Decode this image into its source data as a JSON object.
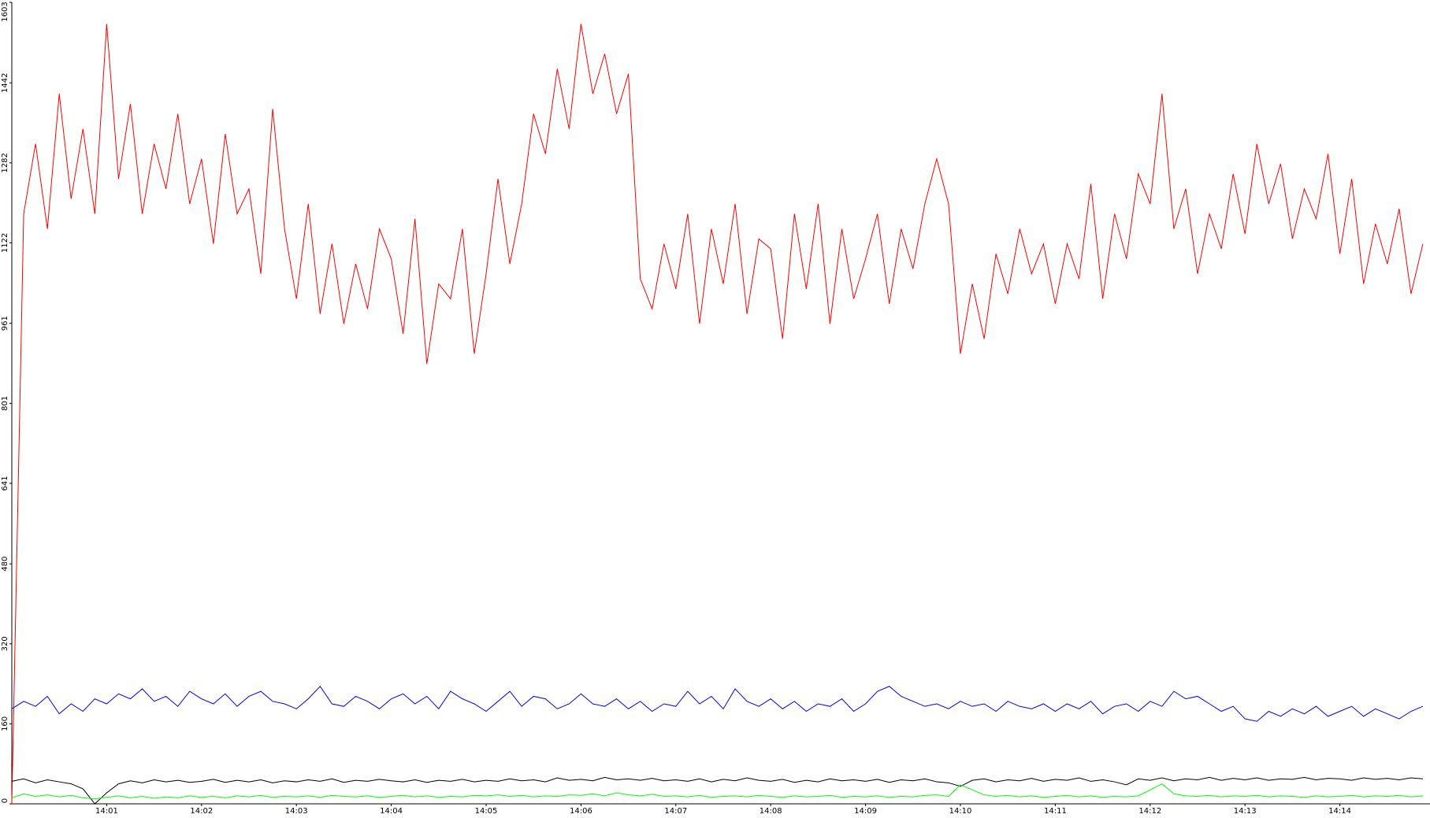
{
  "chart_data": {
    "type": "line",
    "categories": [
      null,
      null,
      null,
      null,
      null,
      null,
      null,
      null,
      "14:01",
      null,
      null,
      null,
      null,
      null,
      null,
      null,
      "14:02",
      null,
      null,
      null,
      null,
      null,
      null,
      null,
      "14:03",
      null,
      null,
      null,
      null,
      null,
      null,
      null,
      "14:04",
      null,
      null,
      null,
      null,
      null,
      null,
      null,
      "14:05",
      null,
      null,
      null,
      null,
      null,
      null,
      null,
      "14:06",
      null,
      null,
      null,
      null,
      null,
      null,
      null,
      "14:07",
      null,
      null,
      null,
      null,
      null,
      null,
      null,
      "14:08",
      null,
      null,
      null,
      null,
      null,
      null,
      null,
      "14:09",
      null,
      null,
      null,
      null,
      null,
      null,
      null,
      "14:10",
      null,
      null,
      null,
      null,
      null,
      null,
      null,
      "14:11",
      null,
      null,
      null,
      null,
      null,
      null,
      null,
      "14:12",
      null,
      null,
      null,
      null,
      null,
      null,
      null,
      "14:13",
      null,
      null,
      null,
      null,
      null,
      null,
      null,
      "14:14",
      null,
      null,
      null,
      null,
      null,
      null,
      null
    ],
    "ylim": [
      0,
      1603
    ],
    "yticks": [
      0,
      160,
      320,
      480,
      641,
      801,
      961,
      1122,
      1282,
      1442,
      1603
    ],
    "grid": false,
    "series": [
      {
        "color": "#ff0000",
        "values": [
          0,
          1180,
          1320,
          1150,
          1420,
          1210,
          1350,
          1180,
          1560,
          1250,
          1400,
          1180,
          1320,
          1230,
          1380,
          1200,
          1290,
          1120,
          1340,
          1180,
          1230,
          1060,
          1390,
          1150,
          1010,
          1200,
          980,
          1120,
          960,
          1080,
          990,
          1150,
          1090,
          940,
          1170,
          880,
          1040,
          1010,
          1150,
          900,
          1060,
          1250,
          1080,
          1200,
          1380,
          1300,
          1470,
          1350,
          1560,
          1420,
          1500,
          1380,
          1460,
          1050,
          990,
          1120,
          1030,
          1180,
          960,
          1150,
          1040,
          1200,
          980,
          1130,
          1110,
          930,
          1180,
          1030,
          1200,
          960,
          1150,
          1010,
          1090,
          1180,
          1000,
          1150,
          1070,
          1200,
          1290,
          1200,
          900,
          1040,
          930,
          1100,
          1020,
          1150,
          1060,
          1120,
          1000,
          1120,
          1050,
          1240,
          1010,
          1180,
          1090,
          1260,
          1200,
          1420,
          1150,
          1230,
          1060,
          1180,
          1110,
          1260,
          1140,
          1320,
          1200,
          1280,
          1130,
          1230,
          1170,
          1300,
          1100,
          1250,
          1040,
          1160,
          1080,
          1190,
          1020,
          1120
        ]
      },
      {
        "color": "#0000ff",
        "values": [
          190,
          205,
          195,
          215,
          180,
          200,
          185,
          210,
          200,
          220,
          210,
          230,
          205,
          215,
          195,
          225,
          210,
          200,
          220,
          195,
          215,
          225,
          205,
          200,
          190,
          210,
          235,
          200,
          195,
          215,
          205,
          190,
          210,
          220,
          200,
          215,
          190,
          225,
          210,
          200,
          185,
          205,
          225,
          195,
          215,
          210,
          190,
          200,
          220,
          200,
          195,
          210,
          190,
          205,
          185,
          200,
          195,
          225,
          200,
          215,
          190,
          230,
          205,
          195,
          210,
          190,
          205,
          185,
          200,
          195,
          210,
          185,
          200,
          225,
          235,
          215,
          205,
          195,
          200,
          190,
          205,
          195,
          200,
          185,
          205,
          195,
          190,
          200,
          185,
          200,
          190,
          205,
          180,
          195,
          200,
          185,
          205,
          195,
          225,
          210,
          215,
          200,
          185,
          195,
          170,
          165,
          185,
          175,
          190,
          180,
          195,
          175,
          185,
          195,
          175,
          190,
          180,
          170,
          185,
          195
        ]
      },
      {
        "color": "#000000",
        "values": [
          45,
          50,
          42,
          48,
          44,
          40,
          30,
          0,
          22,
          40,
          46,
          42,
          48,
          44,
          47,
          43,
          45,
          49,
          43,
          47,
          44,
          48,
          42,
          46,
          44,
          48,
          45,
          50,
          43,
          47,
          45,
          49,
          46,
          44,
          48,
          43,
          47,
          45,
          49,
          44,
          47,
          45,
          50,
          46,
          48,
          44,
          52,
          47,
          49,
          46,
          53,
          48,
          50,
          47,
          51,
          46,
          48,
          45,
          50,
          44,
          49,
          46,
          52,
          47,
          45,
          49,
          43,
          47,
          44,
          50,
          46,
          48,
          45,
          49,
          43,
          48,
          46,
          50,
          44,
          42,
          35,
          47,
          50,
          44,
          48,
          46,
          51,
          45,
          49,
          47,
          52,
          45,
          48,
          44,
          38,
          50,
          47,
          52,
          46,
          50,
          48,
          53,
          47,
          51,
          48,
          52,
          47,
          50,
          49,
          53,
          48,
          51,
          50,
          47,
          52,
          49,
          51,
          48,
          52,
          50
        ]
      },
      {
        "color": "#00ff00",
        "values": [
          12,
          20,
          15,
          18,
          14,
          17,
          12,
          10,
          13,
          16,
          12,
          15,
          11,
          14,
          12,
          16,
          13,
          15,
          12,
          16,
          14,
          17,
          13,
          15,
          14,
          16,
          13,
          17,
          15,
          14,
          16,
          13,
          15,
          17,
          14,
          16,
          13,
          15,
          14,
          17,
          16,
          18,
          15,
          17,
          14,
          16,
          15,
          18,
          17,
          20,
          16,
          22,
          18,
          16,
          19,
          15,
          16,
          14,
          17,
          13,
          15,
          16,
          14,
          17,
          15,
          13,
          16,
          14,
          15,
          17,
          13,
          15,
          14,
          16,
          13,
          15,
          14,
          17,
          18,
          15,
          38,
          28,
          18,
          15,
          17,
          14,
          16,
          13,
          15,
          17,
          14,
          16,
          13,
          15,
          14,
          16,
          28,
          40,
          20,
          16,
          15,
          17,
          14,
          16,
          15,
          17,
          14,
          16,
          15,
          13,
          16,
          14,
          15,
          17,
          14,
          16,
          15,
          17,
          14,
          16
        ]
      }
    ]
  }
}
